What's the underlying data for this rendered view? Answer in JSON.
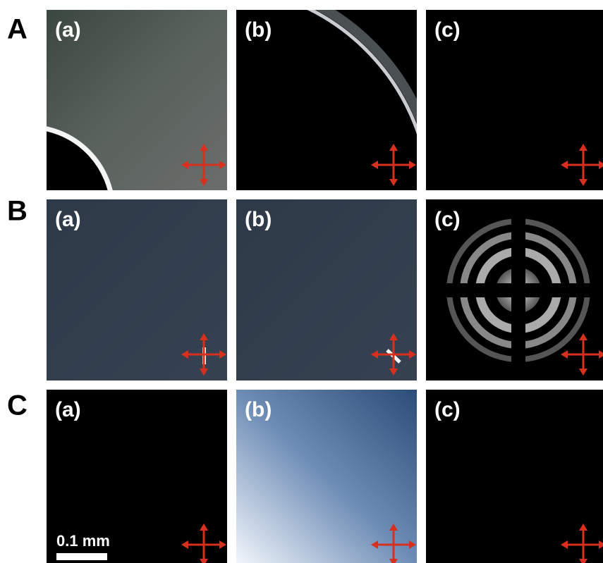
{
  "rows": [
    {
      "label": "A",
      "panels": [
        "(a)",
        "(b)",
        "(c)"
      ]
    },
    {
      "label": "B",
      "panels": [
        "(a)",
        "(b)",
        "(c)"
      ]
    },
    {
      "label": "C",
      "panels": [
        "(a)",
        "(b)",
        "(c)"
      ]
    }
  ],
  "scale_bar": "0.1 mm"
}
